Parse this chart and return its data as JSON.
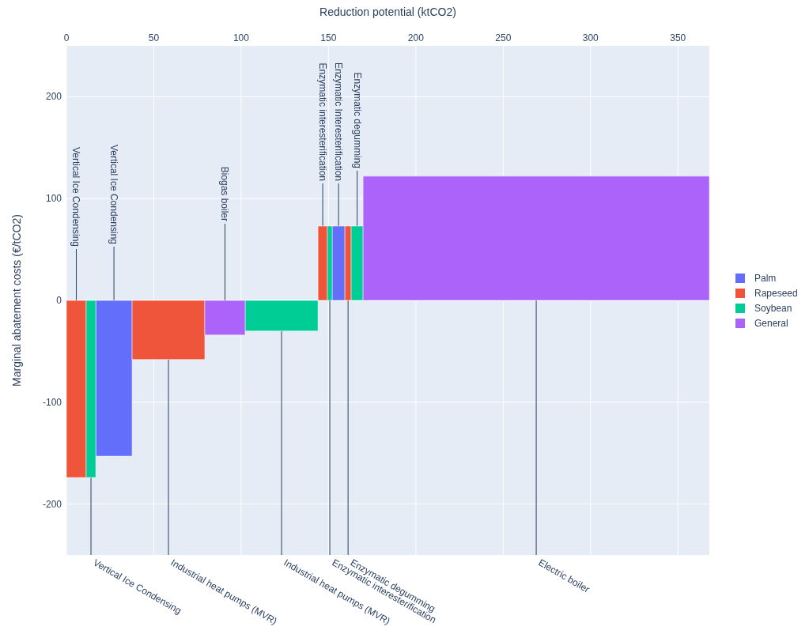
{
  "chart_data": {
    "type": "area",
    "xlabel": "Reduction potential (ktCO2)",
    "ylabel": "Marginal abatement costs (€/tCO2)",
    "xlim": [
      0,
      368
    ],
    "xticks": [
      0,
      50,
      100,
      150,
      200,
      250,
      300,
      350
    ],
    "ylim": [
      -250,
      250
    ],
    "yticks": [
      -200,
      -100,
      0,
      100,
      200
    ],
    "grid": true,
    "legend": "right",
    "series": [
      {
        "name": "Palm",
        "color": "#636efa",
        "x": [
          16.8,
          37.6,
          null,
          152.1,
          159.4
        ],
        "values": [
          -153,
          -153,
          null,
          73,
          73
        ]
      },
      {
        "name": "Rapeseed",
        "color": "#ef553b",
        "x": [
          0,
          11.3,
          null,
          37.6,
          79.2,
          null,
          144,
          149.4,
          null,
          159.4,
          163
        ],
        "values": [
          -174,
          -174,
          null,
          -58,
          -58,
          null,
          73,
          73,
          null,
          73,
          73
        ]
      },
      {
        "name": "Soybean",
        "color": "#00cc96",
        "x": [
          11.3,
          16.8,
          null,
          102.3,
          144,
          null,
          149.4,
          152.1,
          null,
          163,
          169.8
        ],
        "values": [
          -174,
          -174,
          null,
          -30,
          -30,
          null,
          73,
          73,
          null,
          73,
          73
        ]
      },
      {
        "name": "General",
        "color": "#ab63fa",
        "x": [
          79.2,
          102.3,
          null,
          169.8,
          368
        ],
        "values": [
          -34,
          -34,
          null,
          122,
          122
        ]
      }
    ],
    "annotations": [
      {
        "text": "Vertical Ice Condensing",
        "x": 5.65,
        "y": -174
      },
      {
        "text": "Vertical Ice Condensing",
        "x": 27.2,
        "y": -153
      },
      {
        "text": "Biogas boiler",
        "x": 90.75,
        "y": -34
      },
      {
        "text": "Enzymatic interesterification",
        "x": 146.7,
        "y": 73
      },
      {
        "text": "Enzymatic Interesterification",
        "x": 155.75,
        "y": 73
      },
      {
        "text": "Enzymatic degumming",
        "x": 166.4,
        "y": 73
      },
      {
        "text": "Vertical Ice Condensing",
        "x": 14.05,
        "y": -174
      },
      {
        "text": "Industrial heat pumps (MVR)",
        "x": 58.4,
        "y": -58
      },
      {
        "text": "Industrial heat pumps (MVR)",
        "x": 123.15,
        "y": -30
      },
      {
        "text": "Enzymatic interesterification",
        "x": 150.75,
        "y": 73
      },
      {
        "text": "Enzymatic degumming",
        "x": 161.2,
        "y": 73
      },
      {
        "text": "Electric boiler",
        "x": 268.9,
        "y": 122
      }
    ]
  }
}
